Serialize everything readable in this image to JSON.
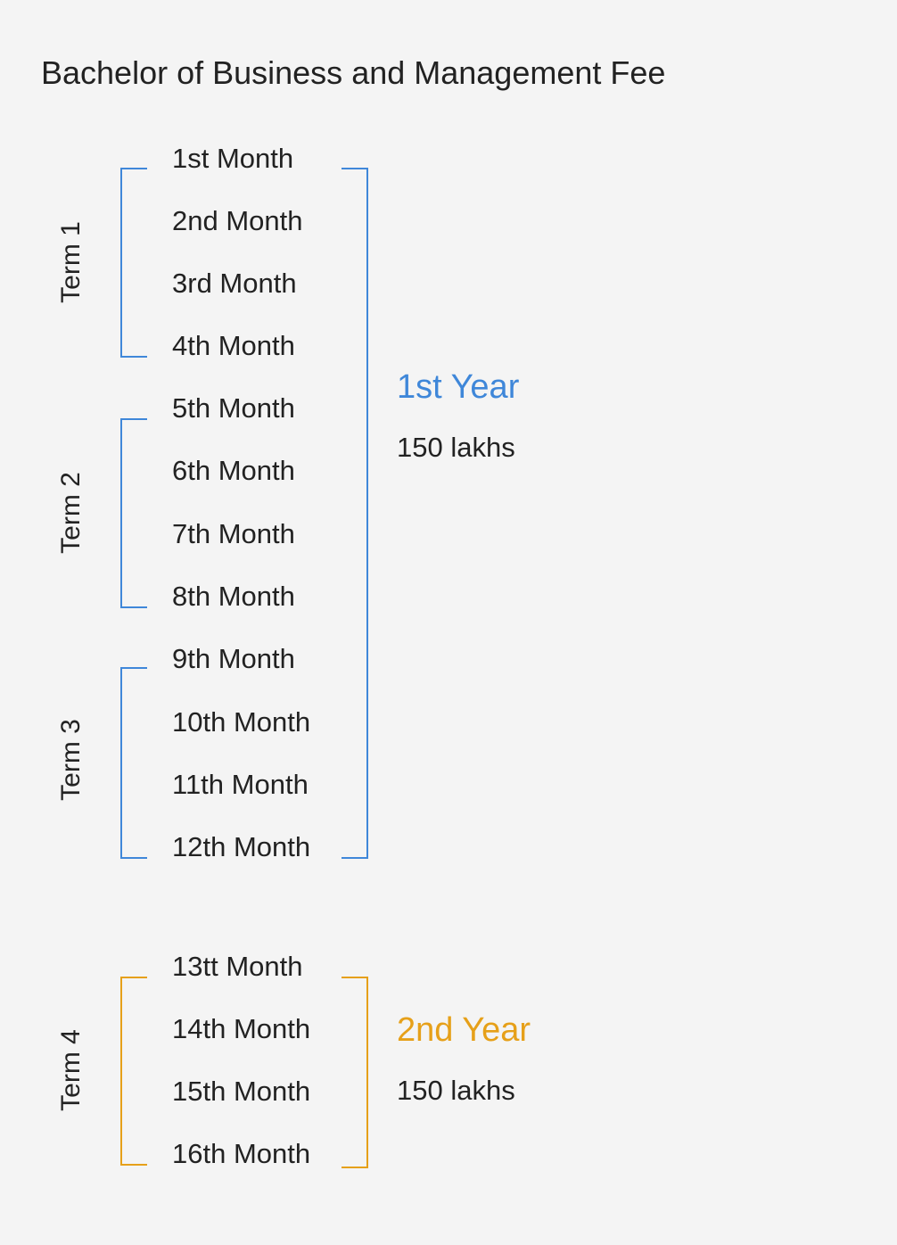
{
  "title": "Bachelor of Business and Management Fee",
  "colors": {
    "year1": "#3f87d9",
    "year2": "#e6a019",
    "text": "#222222",
    "background": "#f4f4f4"
  },
  "months": [
    "1st Month",
    "2nd Month",
    "3rd Month",
    "4th Month",
    "5th Month",
    "6th Month",
    "7th Month",
    "8th Month",
    "9th Month",
    "10th Month",
    "11th Month",
    "12th Month",
    "13tt Month",
    "14th Month",
    "15th Month",
    "16th Month"
  ],
  "terms": [
    "Term 1",
    "Term 2",
    "Term 3",
    "Term 4"
  ],
  "years": [
    {
      "label": "1st Year",
      "fee": "150 lakhs"
    },
    {
      "label": "2nd Year",
      "fee": "150 lakhs"
    }
  ]
}
